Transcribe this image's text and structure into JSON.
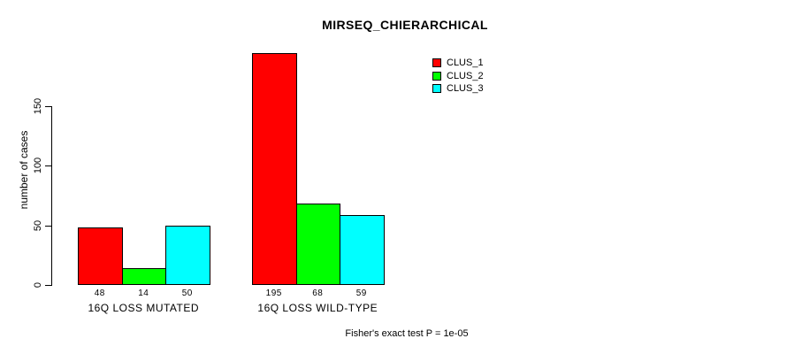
{
  "chart_data": {
    "type": "bar",
    "title": "MIRSEQ_CHIERARCHICAL",
    "ylabel": "number of cases",
    "xlabel": "",
    "categories": [
      "16Q LOSS MUTATED",
      "16Q LOSS WILD-TYPE"
    ],
    "series": [
      {
        "name": "CLUS_1",
        "color": "#ff0000",
        "values": [
          48,
          195
        ]
      },
      {
        "name": "CLUS_2",
        "color": "#00ff00",
        "values": [
          14,
          68
        ]
      },
      {
        "name": "CLUS_3",
        "color": "#00ffff",
        "values": [
          50,
          59
        ]
      }
    ],
    "yticks": [
      0,
      50,
      100,
      150
    ],
    "ylim": [
      0,
      195
    ],
    "show_values_under_bars": true,
    "grid": false,
    "legend_position": "top-right",
    "legend_entries": [
      "CLUS_1",
      "CLUS_2",
      "CLUS_3"
    ],
    "annotation": "Fisher's exact test P = 1e-05"
  }
}
